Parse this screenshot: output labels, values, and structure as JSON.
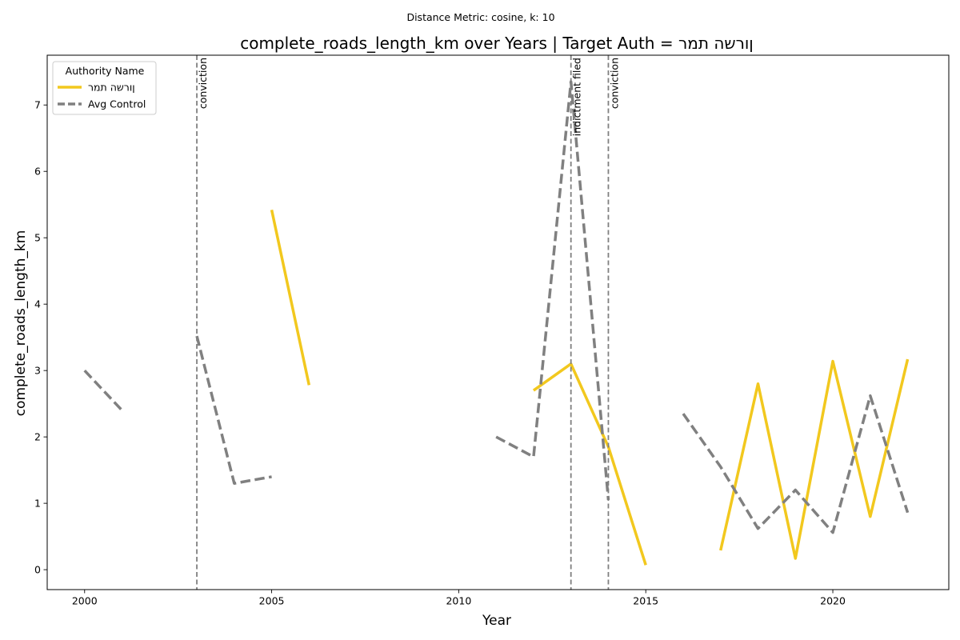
{
  "chart_data": {
    "type": "line",
    "suptitle": "Distance Metric: cosine, k: 10",
    "title": "complete_roads_length_km over Years | Target Auth = ןורשה תמר",
    "xlabel": "Year",
    "ylabel": "complete_roads_length_km",
    "xlim": [
      1999,
      2023.1
    ],
    "ylim": [
      -0.3,
      7.75
    ],
    "x_ticks": [
      2000,
      2005,
      2010,
      2015,
      2020
    ],
    "y_ticks": [
      0,
      1,
      2,
      3,
      4,
      5,
      6,
      7
    ],
    "grid": false,
    "legend": {
      "title": "Authority Name",
      "placement": "upper-left"
    },
    "series": [
      {
        "name": "ןורשה תמר",
        "color": "#f2c81e",
        "style": "solid",
        "segments": [
          [
            [
              2005,
              5.42
            ],
            [
              2006,
              2.78
            ]
          ],
          [
            [
              2012,
              2.7
            ],
            [
              2013,
              3.1
            ],
            [
              2014,
              1.85
            ],
            [
              2015,
              0.07
            ]
          ],
          [
            [
              2017,
              0.29
            ],
            [
              2018,
              2.8
            ],
            [
              2019,
              0.17
            ],
            [
              2020,
              3.14
            ],
            [
              2021,
              0.8
            ],
            [
              2022,
              3.17
            ]
          ]
        ]
      },
      {
        "name": "Avg Control",
        "color": "#808080",
        "style": "dashed",
        "segments": [
          [
            [
              2000,
              3.0
            ],
            [
              2001,
              2.4
            ]
          ],
          [
            [
              2003,
              3.52
            ],
            [
              2004,
              1.3
            ],
            [
              2005,
              1.4
            ]
          ],
          [
            [
              2011,
              2.0
            ],
            [
              2012,
              1.7
            ],
            [
              2013,
              7.35
            ],
            [
              2014,
              1.05
            ]
          ],
          [
            [
              2016,
              2.35
            ],
            [
              2017,
              1.55
            ],
            [
              2018,
              0.62
            ],
            [
              2019,
              1.2
            ],
            [
              2020,
              0.56
            ],
            [
              2021,
              2.62
            ],
            [
              2022,
              0.86
            ]
          ]
        ]
      }
    ],
    "events": [
      {
        "x": 2003,
        "label": "conviction"
      },
      {
        "x": 2013,
        "label": "indictment filed"
      },
      {
        "x": 2014,
        "label": "conviction"
      }
    ]
  }
}
